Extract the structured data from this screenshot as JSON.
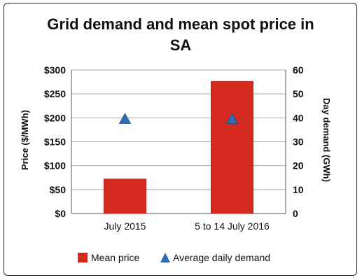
{
  "chart_data": {
    "type": "bar",
    "title_lines": [
      "Grid demand and mean spot price in",
      "SA"
    ],
    "categories": [
      "July 2015",
      "5 to 14 July 2016"
    ],
    "series": [
      {
        "name": "Mean price",
        "kind": "bar",
        "axis": "left",
        "values": [
          72,
          276
        ],
        "color": "#d42a1f"
      },
      {
        "name": "Average daily demand",
        "kind": "marker",
        "axis": "right",
        "values": [
          39.5,
          39.5
        ],
        "color": "#2f6db5"
      }
    ],
    "ylabel_left": "Price ($/MWh)",
    "ylabel_right": "Day demand (GWh)",
    "ylim_left": [
      0,
      300
    ],
    "ylim_right": [
      0,
      60
    ],
    "yticks_left": [
      "$0",
      "$50",
      "$100",
      "$150",
      "$200",
      "$250",
      "$300"
    ],
    "yticks_right": [
      "0",
      "10",
      "20",
      "30",
      "40",
      "50",
      "60"
    ],
    "grid": true,
    "legend_position": "bottom"
  }
}
